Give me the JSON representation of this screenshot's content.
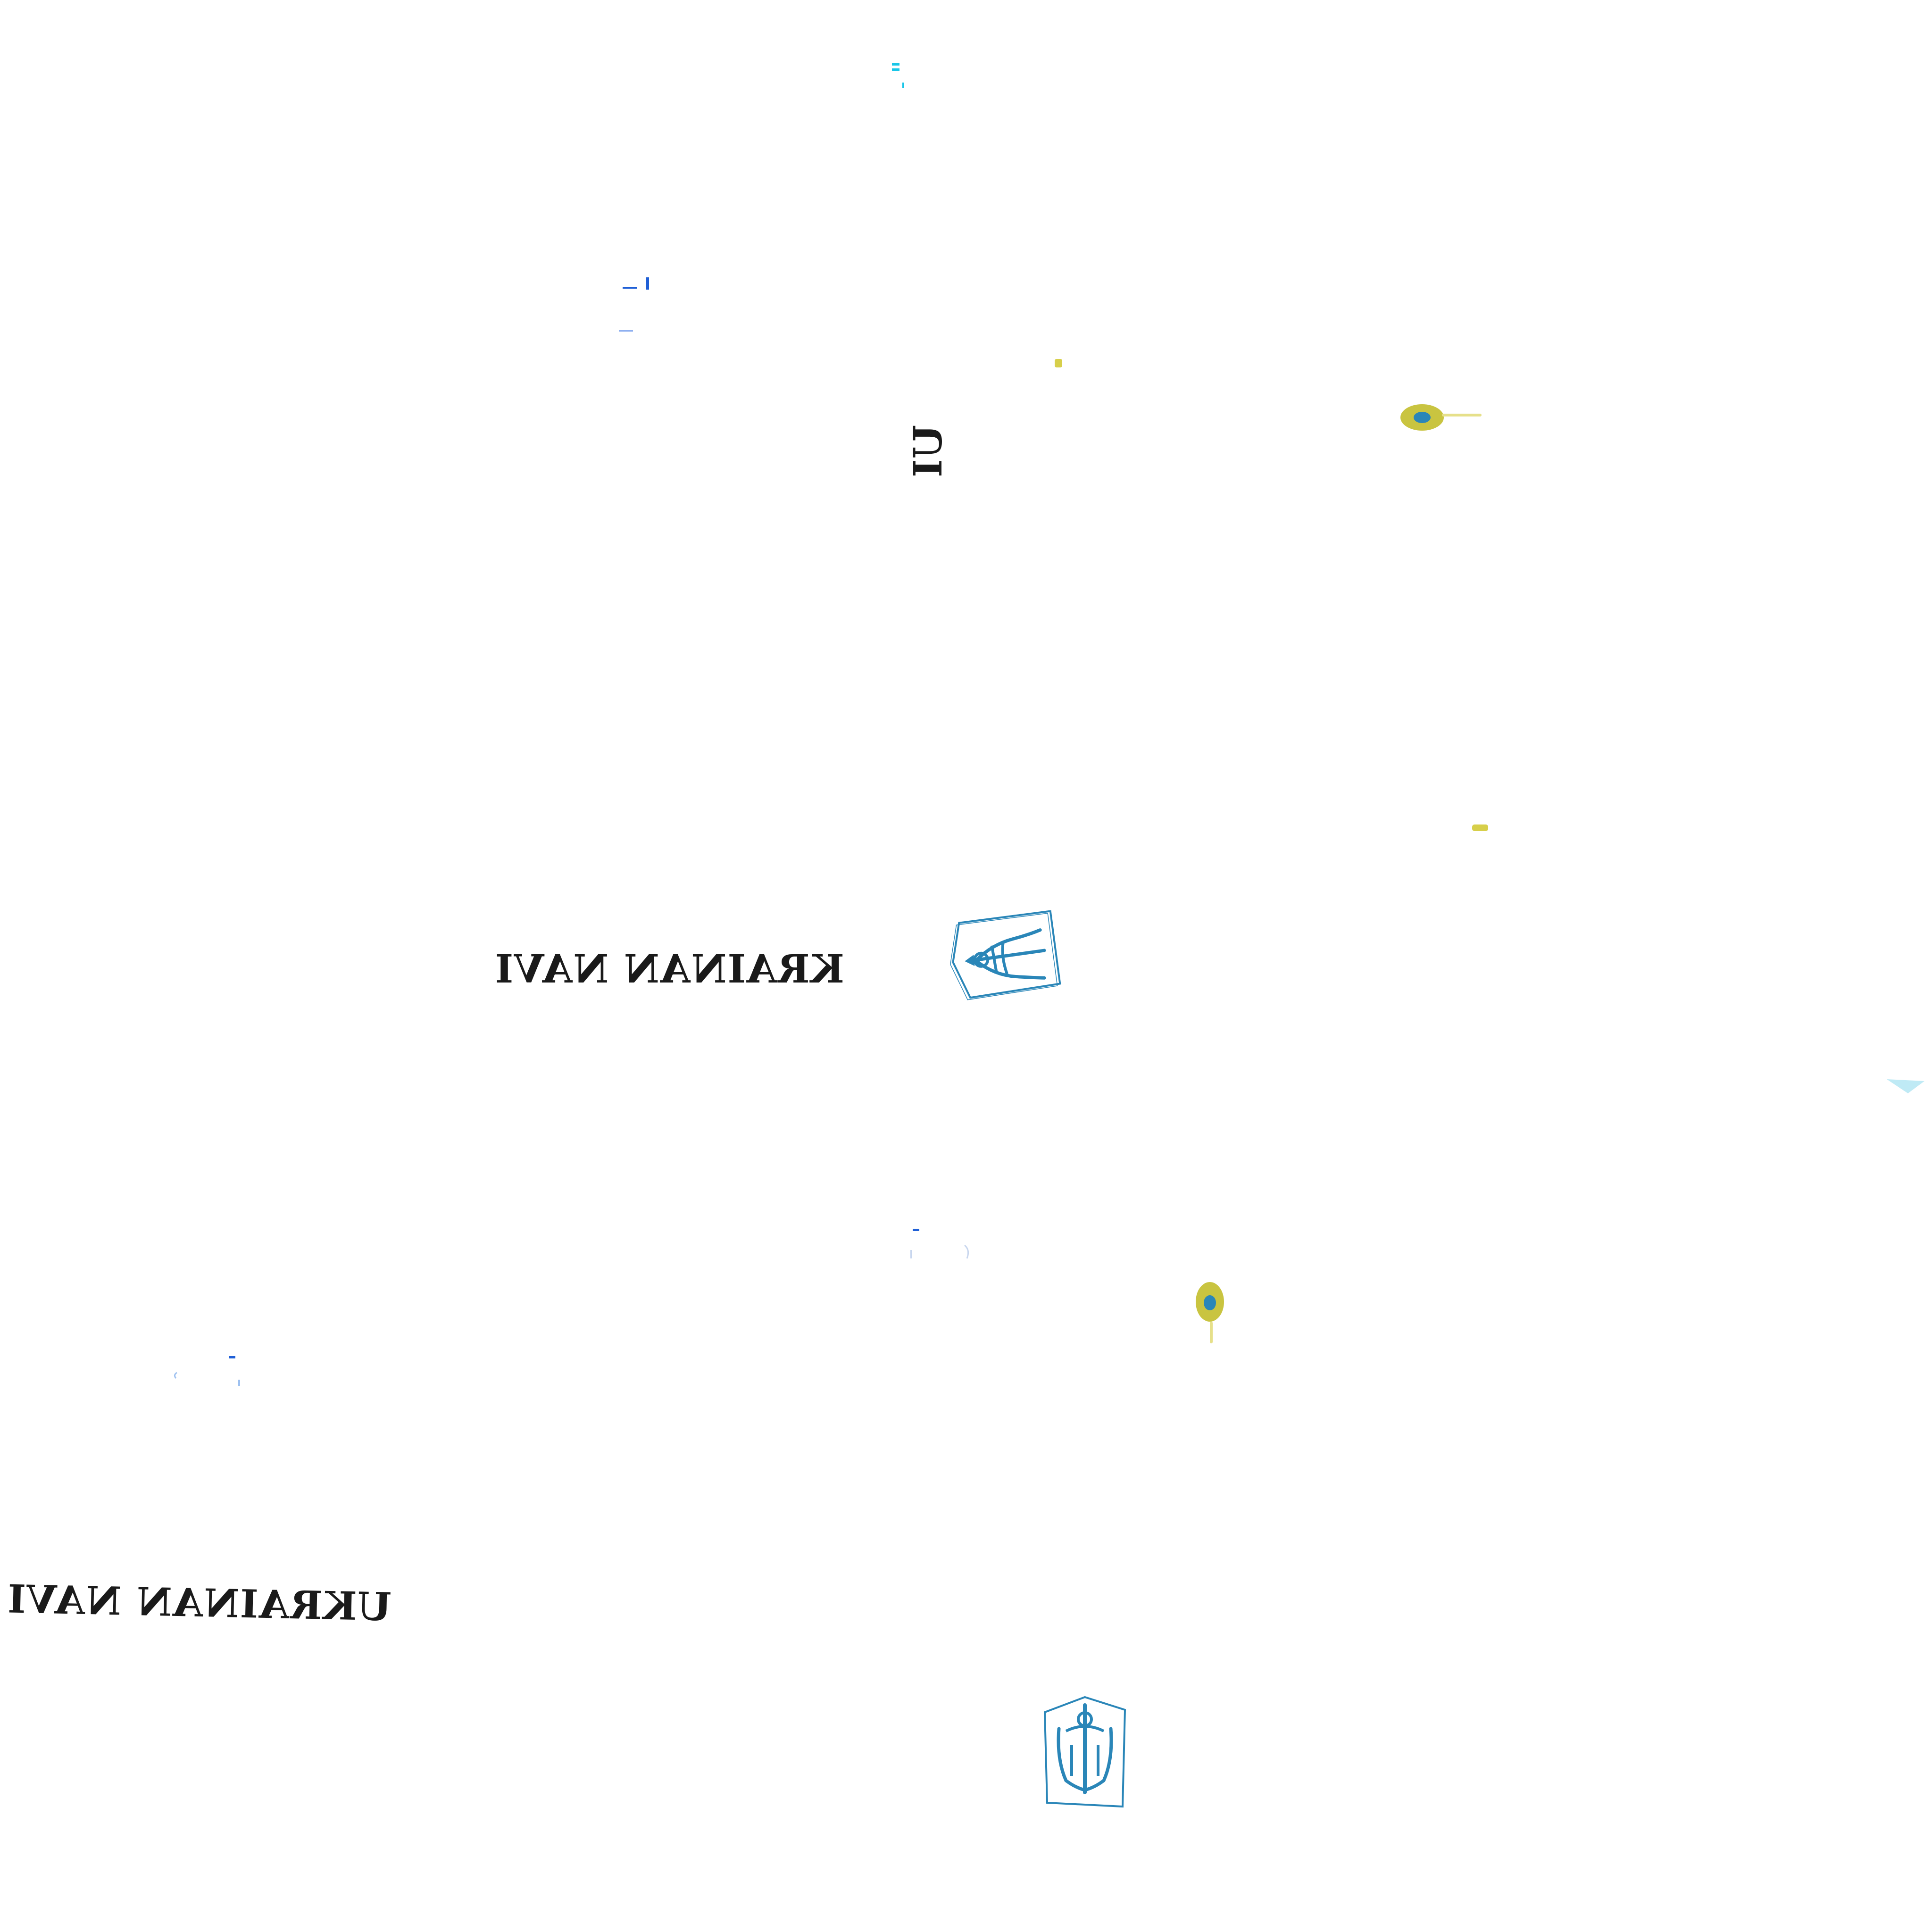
{
  "decals": {
    "text_1": "KRAINAN NAVI",
    "text_2": "UKRAINAN NAVI",
    "text_3": "UI"
  },
  "icons": [
    "trident-icon",
    "roundel-icon"
  ],
  "colors": {
    "background": "#ffffff",
    "stencil_text": "#1a1a1a",
    "trident_blue": "#2a86b8",
    "roundel_yellow": "#c9c440",
    "roundel_blue": "#2a86b8",
    "speck_cyan": "#19c6e8",
    "speck_blue": "#1f5fd6",
    "speck_yellow": "#d7cf4a"
  }
}
